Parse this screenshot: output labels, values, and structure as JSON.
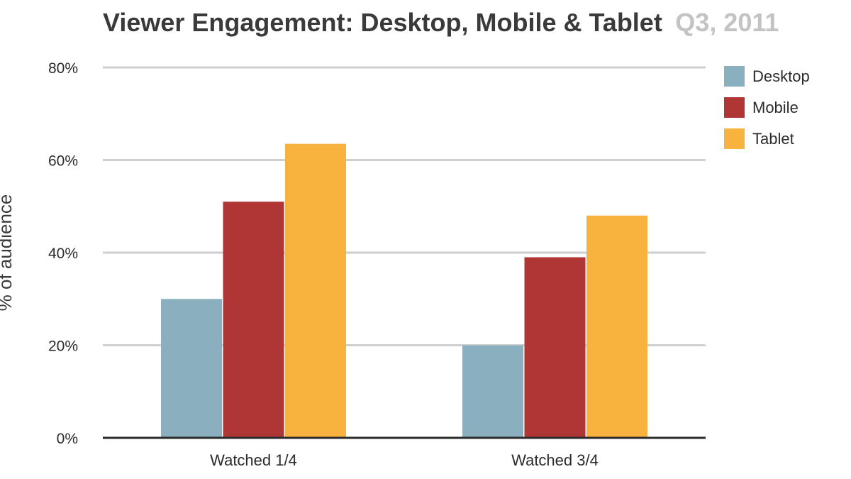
{
  "chart_data": {
    "type": "bar",
    "title": "Viewer Engagement: Desktop, Mobile & Tablet",
    "subtitle": "Q3, 2011",
    "xlabel": "",
    "ylabel": "% of audience",
    "categories": [
      "Watched 1/4",
      "Watched 3/4"
    ],
    "series": [
      {
        "name": "Desktop",
        "color": "#8aafbe",
        "values": [
          30,
          20
        ]
      },
      {
        "name": "Mobile",
        "color": "#b03636",
        "values": [
          51,
          39
        ]
      },
      {
        "name": "Tablet",
        "color": "#f8b33f",
        "values": [
          63.5,
          48
        ]
      }
    ],
    "ylim": [
      0,
      80
    ],
    "yticks": [
      0,
      20,
      40,
      60,
      80
    ],
    "ytick_labels": [
      "0%",
      "20%",
      "40%",
      "60%",
      "80%"
    ],
    "grid": true,
    "legend_position": "right"
  }
}
